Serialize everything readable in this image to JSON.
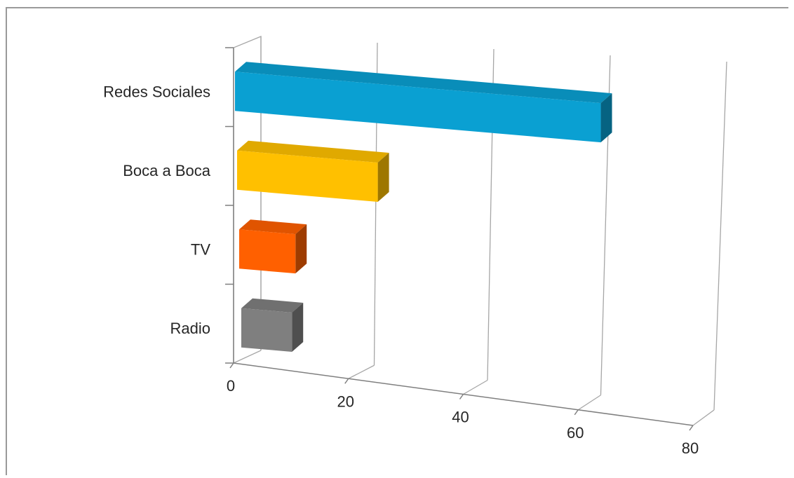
{
  "chart_data": {
    "type": "bar",
    "orientation": "horizontal",
    "style": "3d",
    "categories": [
      "Redes Sociales",
      "Boca a Boca",
      "TV",
      "Radio"
    ],
    "values": [
      65,
      25,
      10,
      9
    ],
    "colors": [
      "#0AA0D2",
      "#FFC000",
      "#FF6000",
      "#7F7F7F"
    ],
    "xticks": [
      "0",
      "20",
      "40",
      "60",
      "80"
    ],
    "xlim": [
      0,
      80
    ],
    "grid": true,
    "legend": "none"
  }
}
